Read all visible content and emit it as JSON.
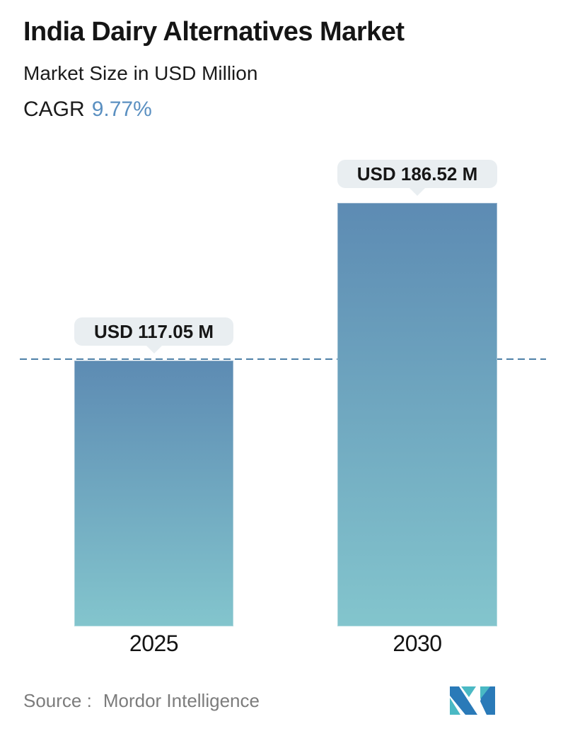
{
  "header": {
    "title": "India Dairy Alternatives Market",
    "subtitle": "Market Size in USD Million",
    "cagr_label": "CAGR",
    "cagr_value": "9.77%"
  },
  "chart_data": {
    "type": "bar",
    "title": "India Dairy Alternatives Market",
    "subtitle": "Market Size in USD Million",
    "unit": "USD Million",
    "cagr_percent": 9.77,
    "categories": [
      "2025",
      "2030"
    ],
    "values": [
      117.05,
      186.52
    ],
    "value_labels": [
      "USD 117.05 M",
      "USD 186.52 M"
    ],
    "xlabel": "",
    "ylabel": "",
    "axes_visible": false,
    "grid": false,
    "legend": false,
    "reference_line": {
      "style": "dashed",
      "at_value": 117.05,
      "color": "#4e81a8"
    },
    "bar_gradient_top": "#5d8bb3",
    "bar_gradient_bottom": "#83c5cd",
    "tooltip_bg": "#e9eef1"
  },
  "footer": {
    "source_label": "Source :",
    "source_value": "Mordor Intelligence"
  },
  "colors": {
    "cagr_value_blue": "#5b90c1",
    "text_dark": "#161616",
    "source_gray": "#7c7c7c",
    "logo_blue": "#2a7ab8",
    "logo_teal": "#4ab9c4"
  }
}
